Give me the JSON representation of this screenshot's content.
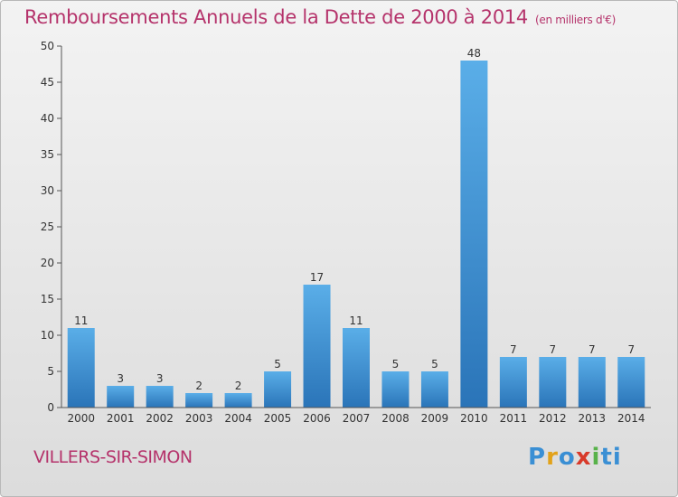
{
  "chart_data": {
    "type": "bar",
    "title": "Remboursements Annuels de la Dette de 2000 à 2014",
    "unit_note": "(en milliers d'€)",
    "categories": [
      "2000",
      "2001",
      "2002",
      "2003",
      "2004",
      "2005",
      "2006",
      "2007",
      "2008",
      "2009",
      "2010",
      "2011",
      "2012",
      "2013",
      "2014"
    ],
    "values": [
      11,
      3,
      3,
      2,
      2,
      5,
      17,
      11,
      5,
      5,
      48,
      7,
      7,
      7,
      7
    ],
    "ylim": [
      0,
      50
    ],
    "yticks": [
      0,
      5,
      10,
      15,
      20,
      25,
      30,
      35,
      40,
      45,
      50
    ],
    "grid": false,
    "bar_color": "#3a8fd4"
  },
  "footer": {
    "place": "VILLERS-SIR-SIMON",
    "logo_text": "Proxiti"
  },
  "colors": {
    "title": "#b5336b",
    "place": "#b5336b"
  }
}
